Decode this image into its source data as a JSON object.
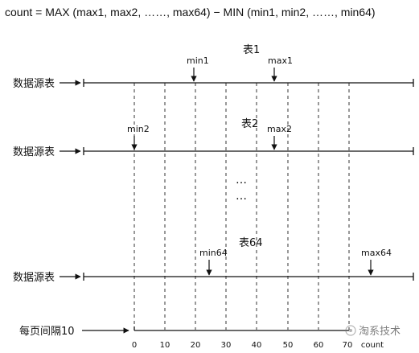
{
  "formula": "count = MAX (max1, max2, ……, max64) − MIN (min1, min2, ……, min64)",
  "source_label": "数据源表",
  "tables": [
    {
      "title": "表1",
      "min_label": "min1",
      "max_label": "max1"
    },
    {
      "title": "表2",
      "min_label": "min2",
      "max_label": "max2"
    },
    {
      "title": "表64",
      "min_label": "min64",
      "max_label": "max64"
    }
  ],
  "ellipsis": [
    "…",
    "…"
  ],
  "page_label": "每页间隔10",
  "ticks": [
    "0",
    "10",
    "20",
    "30",
    "40",
    "50",
    "60",
    "70"
  ],
  "count_label": "count",
  "watermark": "淘系技术"
}
